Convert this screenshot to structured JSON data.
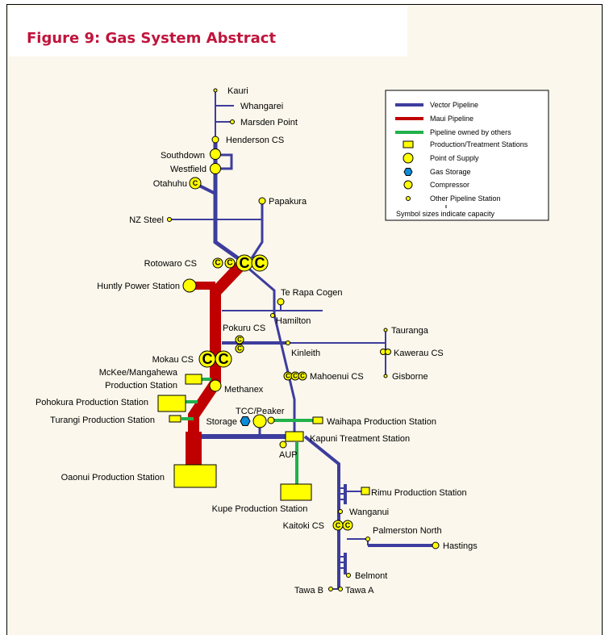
{
  "title": "Figure 9: Gas System Abstract",
  "legend": {
    "items": [
      "Vector Pipeline",
      "Maui Pipeline",
      "Pipeline owned by others",
      "Production/Treatment Stations",
      "Point of Supply",
      "Gas Storage",
      "Compressor",
      "Other Pipeline Station"
    ],
    "note": "Symbol sizes indicate capacity"
  },
  "labels": [
    "Kauri",
    "Whangarei",
    "Marsden Point",
    "Henderson CS",
    "Southdown",
    "Westfield",
    "Otahuhu",
    "Papakura",
    "NZ Steel",
    "Rotowaro CS",
    "Huntly Power Station",
    "Te Rapa Cogen",
    "Hamilton",
    "Pokuru CS",
    "Tauranga",
    "Kinleith",
    "Kawerau CS",
    "Mokau CS",
    "McKee/Mangahewa",
    "Production Station",
    "Mahoenui CS",
    "Gisborne",
    "Methanex",
    "Pohokura Production Station",
    "TCC/Peaker",
    "Turangi Production Station",
    "Storage",
    "Waihapa Production Station",
    "Kapuni Treatment Station",
    "AUP",
    "Oaonui Production Station",
    "Rimu Production Station",
    "Kupe Production Station",
    "Wanganui",
    "Kaitoki CS",
    "Palmerston North",
    "Hastings",
    "Belmont",
    "Tawa B",
    "Tawa A"
  ]
}
